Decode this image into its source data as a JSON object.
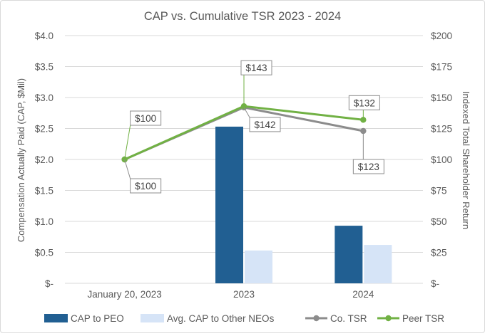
{
  "chart_data": {
    "type": "bar",
    "title": "CAP vs. Cumulative TSR 2023 - 2024",
    "categories": [
      "January 20, 2023",
      "2023",
      "2024"
    ],
    "ylabel": "Compensation Actually Paid  (CAP, $Mil)",
    "y2label": "Indexed Total Shareholder Return",
    "ylim": [
      0,
      4
    ],
    "y2lim": [
      0,
      200
    ],
    "yticks": [
      "$-",
      "$0.5",
      "$1.0",
      "$1.5",
      "$2.0",
      "$2.5",
      "$3.0",
      "$3.5",
      "$4.0"
    ],
    "y2ticks": [
      "$-",
      "$25",
      "$50",
      "$75",
      "$100",
      "$125",
      "$150",
      "$175",
      "$200"
    ],
    "grid": true,
    "legend_position": "bottom",
    "series": [
      {
        "name": "CAP to PEO",
        "kind": "bar",
        "axis": "left",
        "color": "#215f92",
        "values": [
          null,
          2.53,
          0.93
        ]
      },
      {
        "name": "Avg. CAP to Other NEOs",
        "kind": "bar",
        "axis": "left",
        "color": "#d6e4f7",
        "values": [
          null,
          0.53,
          0.62
        ]
      },
      {
        "name": "Co. TSR",
        "kind": "line",
        "axis": "right",
        "color": "#8c8c8c",
        "values": [
          100,
          142,
          123
        ],
        "labels": [
          "$100",
          "$142",
          "$123"
        ]
      },
      {
        "name": "Peer TSR",
        "kind": "line",
        "axis": "right",
        "color": "#71b144",
        "values": [
          100,
          143,
          132
        ],
        "labels": [
          "$100",
          "$143",
          "$132"
        ]
      }
    ]
  }
}
